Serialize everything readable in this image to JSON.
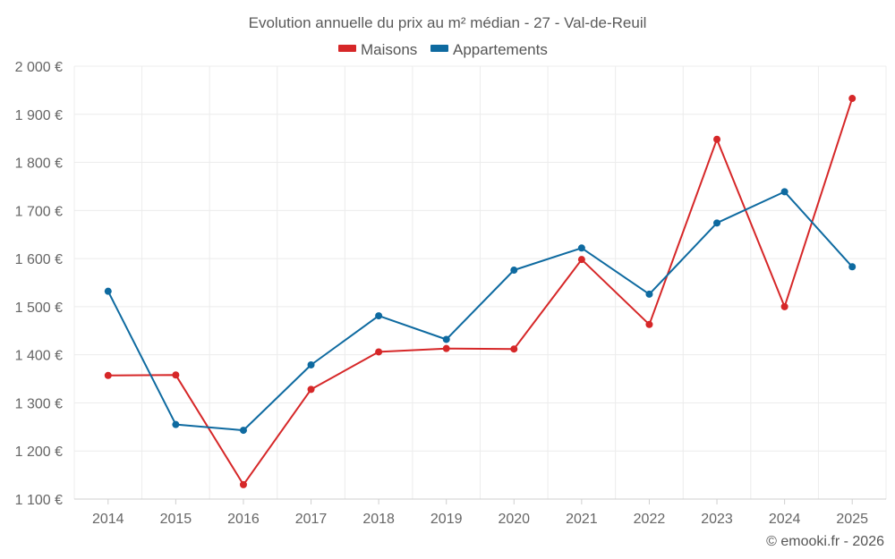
{
  "chart_data": {
    "type": "line",
    "title": "Evolution annuelle du prix au m² médian - 27 - Val-de-Reuil",
    "categories": [
      "2014",
      "2015",
      "2016",
      "2017",
      "2018",
      "2019",
      "2020",
      "2021",
      "2022",
      "2023",
      "2024",
      "2025"
    ],
    "series": [
      {
        "name": "Maisons",
        "color": "#d62728",
        "values": [
          1357,
          1358,
          1130,
          1328,
          1406,
          1413,
          1412,
          1598,
          1463,
          1848,
          1500,
          1933
        ]
      },
      {
        "name": "Appartements",
        "color": "#0e6aa0",
        "values": [
          1532,
          1255,
          1243,
          1379,
          1481,
          1432,
          1576,
          1622,
          1526,
          1674,
          1739,
          1583
        ]
      }
    ],
    "ylim": [
      1100,
      2000
    ],
    "yticks": [
      1100,
      1200,
      1300,
      1400,
      1500,
      1600,
      1700,
      1800,
      1900,
      2000
    ],
    "ytick_labels": [
      "1 100 €",
      "1 200 €",
      "1 300 €",
      "1 400 €",
      "1 500 €",
      "1 600 €",
      "1 700 €",
      "1 800 €",
      "1 900 €",
      "2 000 €"
    ],
    "xlabel": "",
    "ylabel": "",
    "grid": true,
    "legend_position": "top-center"
  },
  "credit": "© emooki.fr - 2026"
}
